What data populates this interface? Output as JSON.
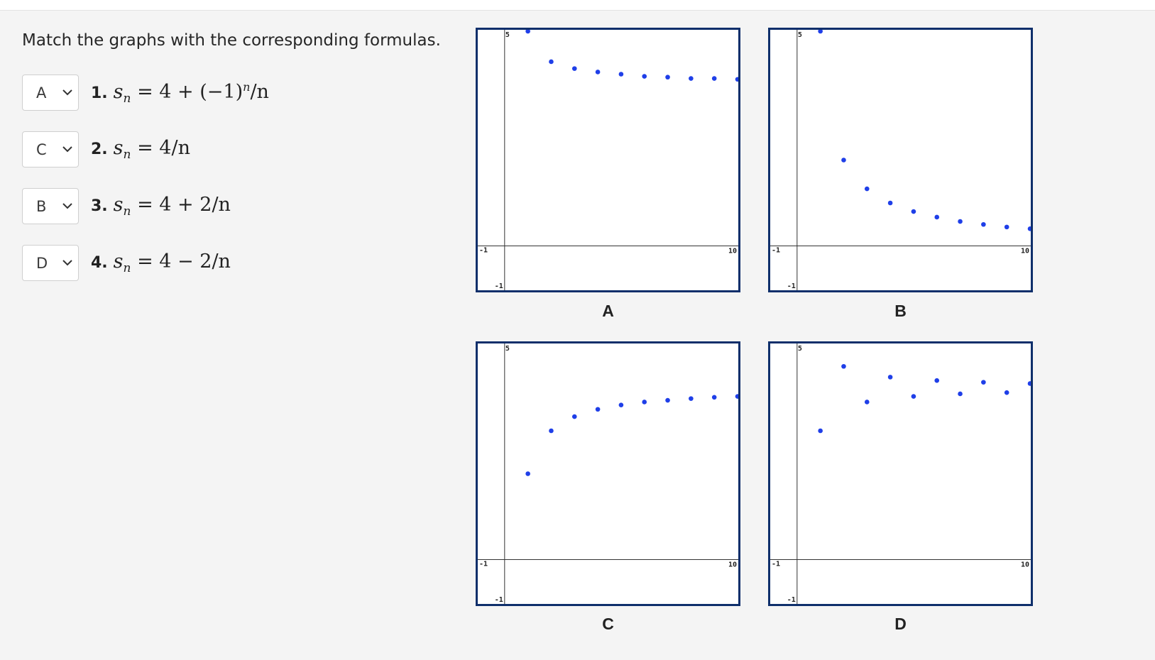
{
  "question": "Match the graphs with the corresponding formulas.",
  "rows": [
    {
      "selected": "A",
      "number": "1.",
      "rhs": "4 + (−1)",
      "sup": "n",
      "tail": "/n"
    },
    {
      "selected": "C",
      "number": "2.",
      "rhs": "4/n",
      "sup": "",
      "tail": ""
    },
    {
      "selected": "B",
      "number": "3.",
      "rhs": "4 + 2/n",
      "sup": "",
      "tail": ""
    },
    {
      "selected": "D",
      "number": "4.",
      "rhs": "4 − 2/n",
      "sup": "",
      "tail": ""
    }
  ],
  "formula_symbol": "s",
  "formula_sub": "n",
  "formula_eq": "=",
  "graphs": [
    {
      "label": "A"
    },
    {
      "label": "B"
    },
    {
      "label": "C"
    },
    {
      "label": "D"
    }
  ],
  "axis_labels": {
    "y_top": "5",
    "x_left": "-1",
    "y_bottom": "-1",
    "x_right": "10"
  },
  "point_color": "#1f3fe8",
  "chart_data": [
    {
      "type": "scatter",
      "title": "",
      "xlim": [
        -1,
        10
      ],
      "ylim": [
        -1,
        5
      ],
      "x": [
        1,
        2,
        3,
        4,
        5,
        6,
        7,
        8,
        9,
        10
      ],
      "y": [
        5.0,
        4.29,
        4.13,
        4.05,
        4.0,
        3.95,
        3.93,
        3.9,
        3.9,
        3.88
      ]
    },
    {
      "type": "scatter",
      "title": "",
      "xlim": [
        -1,
        10
      ],
      "ylim": [
        -1,
        5
      ],
      "x": [
        1,
        2,
        3,
        4,
        5,
        6,
        7,
        8,
        9,
        10
      ],
      "y": [
        5.0,
        2.0,
        1.33,
        1.0,
        0.8,
        0.67,
        0.57,
        0.5,
        0.44,
        0.4
      ]
    },
    {
      "type": "scatter",
      "title": "",
      "xlim": [
        -1,
        10
      ],
      "ylim": [
        -1,
        5
      ],
      "x": [
        1,
        2,
        3,
        4,
        5,
        6,
        7,
        8,
        9,
        10
      ],
      "y": [
        2.0,
        3.0,
        3.33,
        3.5,
        3.6,
        3.67,
        3.71,
        3.75,
        3.78,
        3.8
      ]
    },
    {
      "type": "scatter",
      "title": "",
      "xlim": [
        -1,
        10
      ],
      "ylim": [
        -1,
        5
      ],
      "x": [
        1,
        2,
        3,
        4,
        5,
        6,
        7,
        8,
        9,
        10
      ],
      "y": [
        3.0,
        4.5,
        3.67,
        4.25,
        3.8,
        4.17,
        3.86,
        4.13,
        3.89,
        4.1
      ]
    }
  ]
}
